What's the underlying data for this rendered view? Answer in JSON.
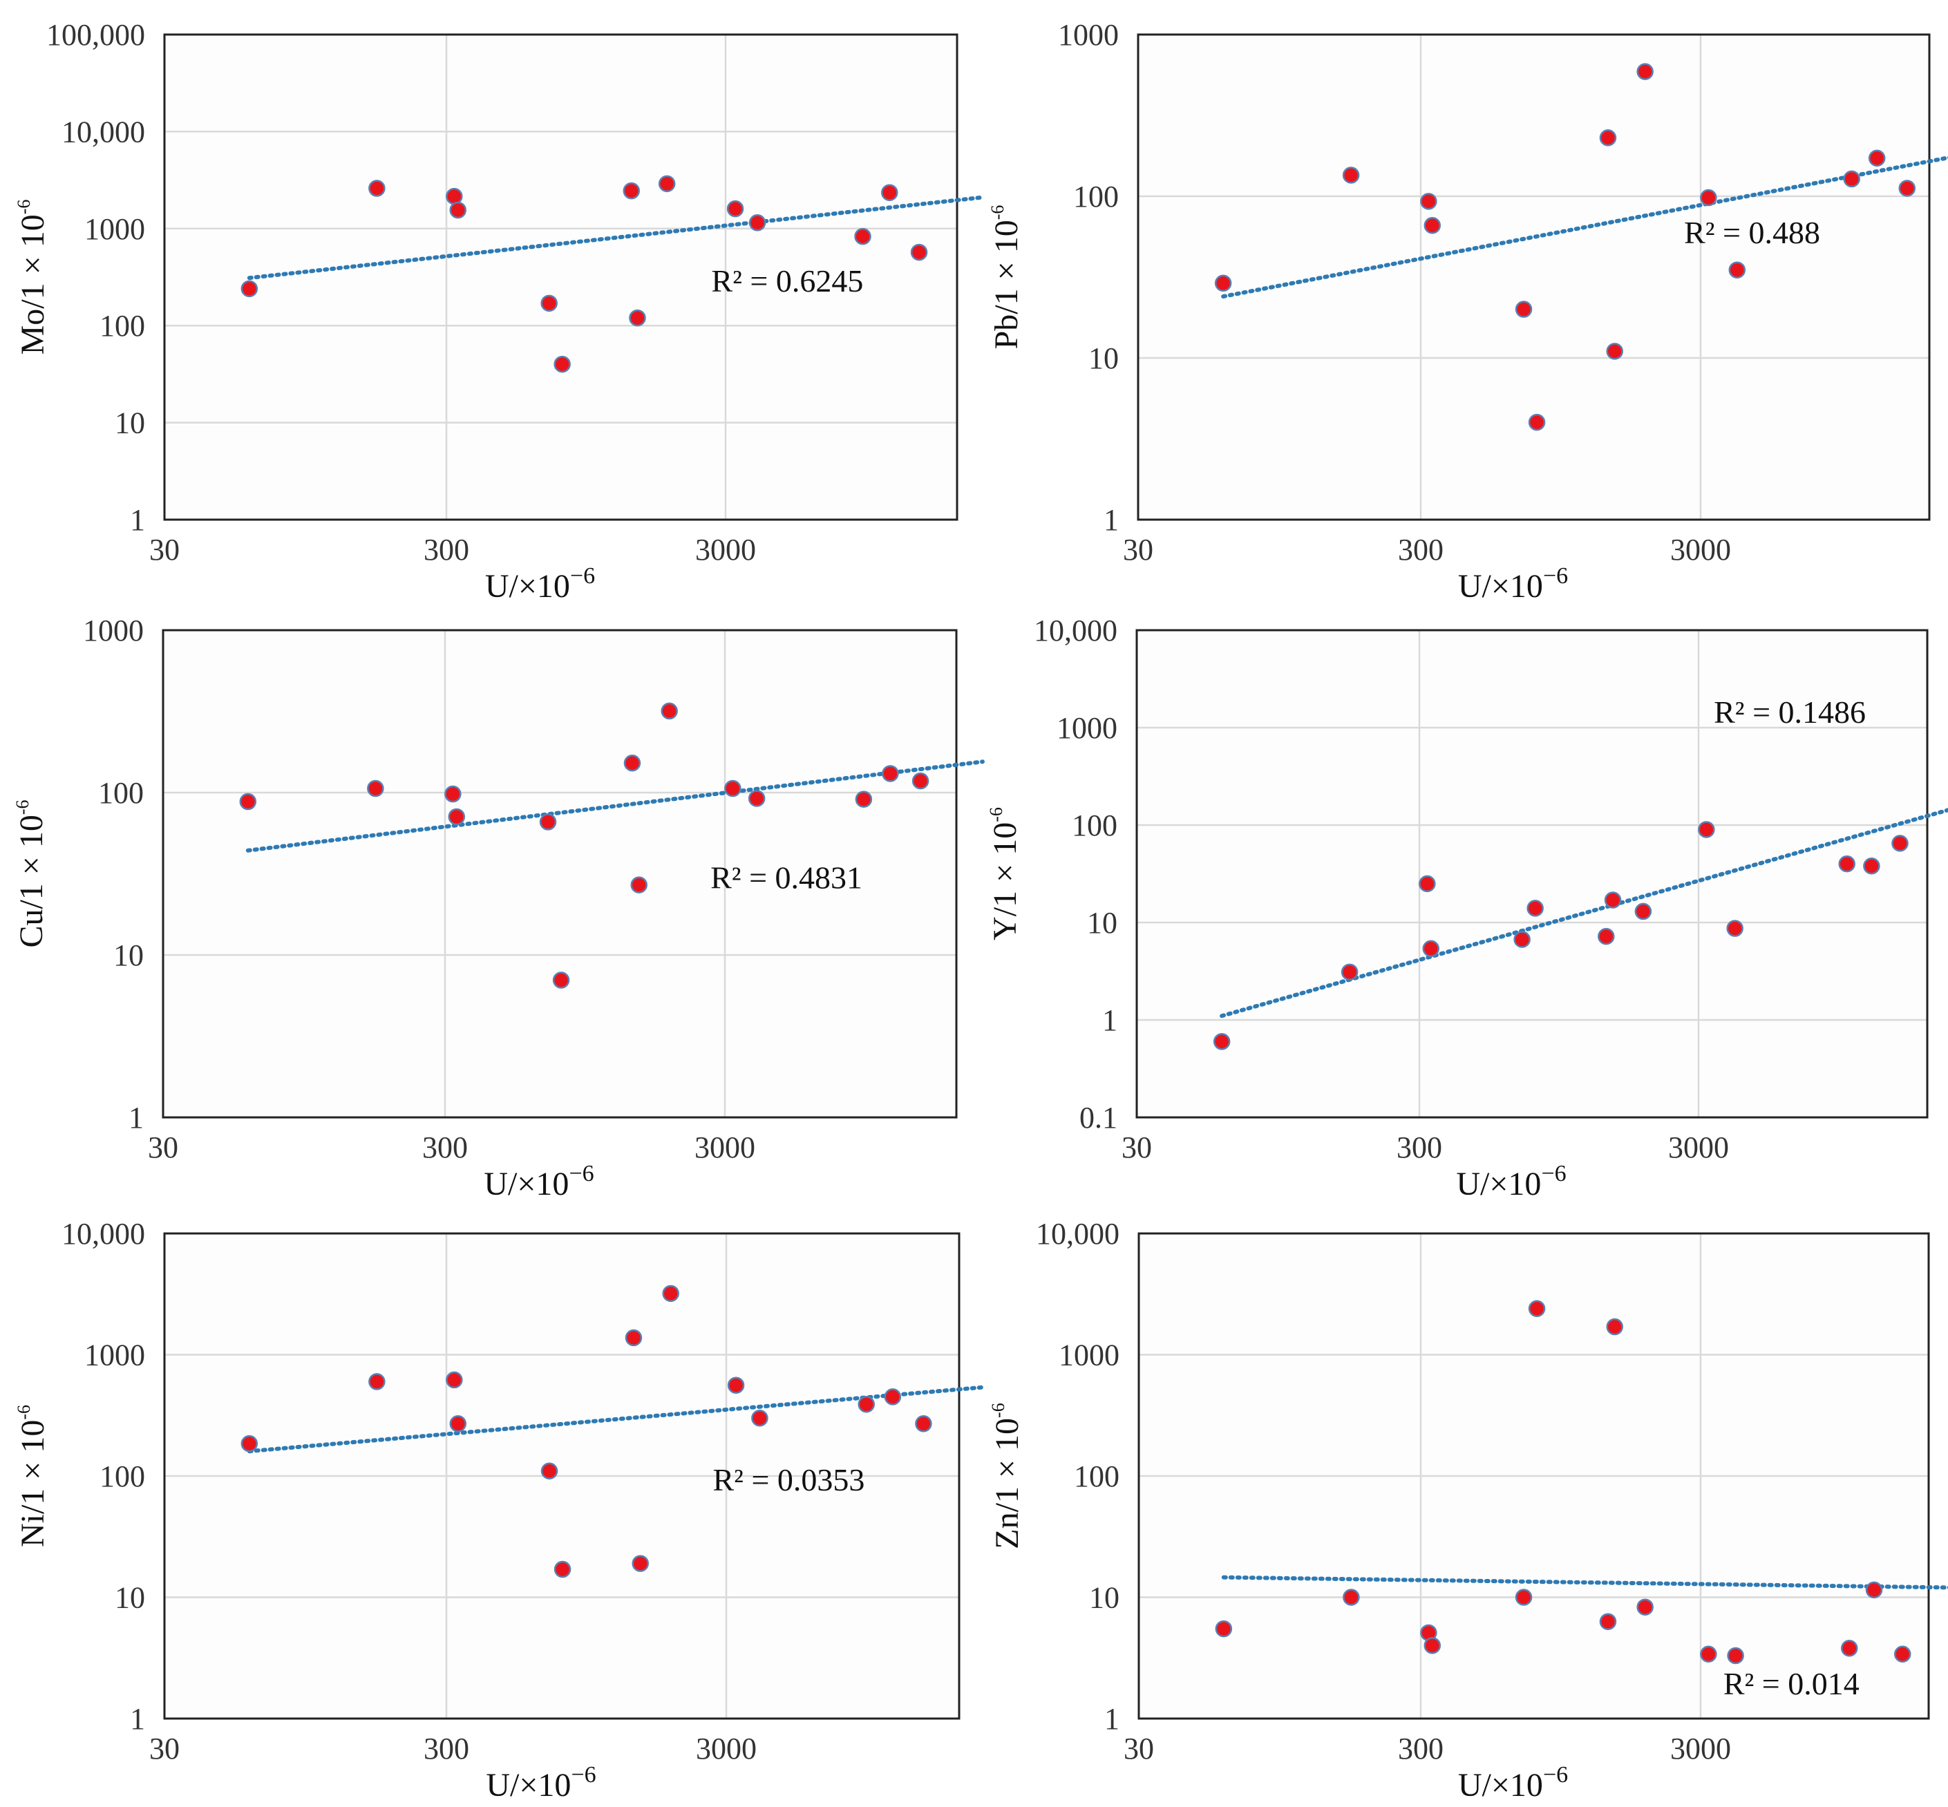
{
  "colors": {
    "point_fill": "#e8141c",
    "point_stroke": "#5b7fb3",
    "trend": "#2e7ab3",
    "grid": "#d9d9d9"
  },
  "chart_data": [
    {
      "type": "scatter",
      "xlabel": "U/×10",
      "xlabel_exp": "−6",
      "ylabel": "Mo/1 × 10",
      "ylabel_exp": "-6",
      "xscale": "log",
      "yscale": "log",
      "xlim": [
        30,
        25000
      ],
      "ylim": [
        1,
        100000
      ],
      "xticks": [
        30,
        300,
        3000
      ],
      "xtick_labels": [
        "30",
        "300",
        "3000"
      ],
      "yticks": [
        1,
        10,
        100,
        1000,
        10000,
        100000
      ],
      "ytick_labels": [
        "1",
        "10",
        "100",
        "1000",
        "10,000",
        "100,000"
      ],
      "points": [
        [
          60,
          240
        ],
        [
          170,
          2600
        ],
        [
          320,
          2150
        ],
        [
          330,
          1550
        ],
        [
          700,
          170
        ],
        [
          780,
          40
        ],
        [
          1380,
          2450
        ],
        [
          1450,
          120
        ],
        [
          1850,
          2900
        ],
        [
          3250,
          1600
        ],
        [
          3900,
          1150
        ],
        [
          9300,
          830
        ],
        [
          11600,
          2350
        ],
        [
          14800,
          570
        ]
      ],
      "trend": {
        "x": [
          60,
          25000
        ],
        "y": [
          310,
          2100
        ]
      },
      "r2_label": "R² = 0.6245",
      "annotation_position": "right-middle"
    },
    {
      "type": "scatter",
      "xlabel": "U/×10",
      "xlabel_exp": "−6",
      "ylabel": "Pb/1 × 10",
      "ylabel_exp": "-6",
      "xscale": "log",
      "yscale": "log",
      "xlim": [
        30,
        25000
      ],
      "ylim": [
        1,
        1000
      ],
      "xticks": [
        30,
        300,
        3000
      ],
      "xtick_labels": [
        "30",
        "300",
        "3000"
      ],
      "yticks": [
        1,
        10,
        100,
        1000
      ],
      "ytick_labels": [
        "1",
        "10",
        "100",
        "1000"
      ],
      "points": [
        [
          60,
          29
        ],
        [
          170,
          135
        ],
        [
          320,
          93
        ],
        [
          330,
          66
        ],
        [
          700,
          20
        ],
        [
          780,
          4
        ],
        [
          1400,
          230
        ],
        [
          1480,
          11
        ],
        [
          1900,
          590
        ],
        [
          3200,
          98
        ],
        [
          4050,
          35
        ],
        [
          10400,
          128
        ],
        [
          12800,
          172
        ],
        [
          16400,
          112
        ]
      ],
      "trend": {
        "x": [
          60,
          25000
        ],
        "y": [
          24,
          178
        ]
      },
      "r2_label": "R² = 0.488",
      "annotation_position": "right-middle"
    },
    {
      "type": "scatter",
      "xlabel": "U/×10",
      "xlabel_exp": "−6",
      "ylabel": "Cu/1 × 10",
      "ylabel_exp": "-6",
      "xscale": "log",
      "yscale": "log",
      "xlim": [
        30,
        25000
      ],
      "ylim": [
        1,
        1000
      ],
      "xticks": [
        30,
        300,
        3000
      ],
      "xtick_labels": [
        "30",
        "300",
        "3000"
      ],
      "yticks": [
        1,
        10,
        100,
        1000
      ],
      "ytick_labels": [
        "1",
        "10",
        "100",
        "1000"
      ],
      "points": [
        [
          60,
          88
        ],
        [
          170,
          106
        ],
        [
          320,
          98
        ],
        [
          330,
          71
        ],
        [
          700,
          66
        ],
        [
          780,
          7
        ],
        [
          1400,
          152
        ],
        [
          1480,
          27
        ],
        [
          1900,
          318
        ],
        [
          3200,
          106
        ],
        [
          3900,
          92
        ],
        [
          9400,
          91
        ],
        [
          11700,
          131
        ],
        [
          15000,
          118
        ]
      ],
      "trend": {
        "x": [
          60,
          25000
        ],
        "y": [
          44,
          155
        ]
      },
      "r2_label": "R² = 0.4831",
      "annotation_position": "right-middle"
    },
    {
      "type": "scatter",
      "xlabel": "U/×10",
      "xlabel_exp": "−6",
      "ylabel": "Y/1 × 10",
      "ylabel_exp": "-6",
      "xscale": "log",
      "yscale": "log",
      "xlim": [
        30,
        25000
      ],
      "ylim": [
        0.1,
        10000
      ],
      "xticks": [
        30,
        300,
        3000
      ],
      "xtick_labels": [
        "30",
        "300",
        "3000"
      ],
      "yticks": [
        0.1,
        1,
        10,
        100,
        1000,
        10000
      ],
      "ytick_labels": [
        "0.1",
        "1",
        "10",
        "100",
        "1000",
        "10,000"
      ],
      "points": [
        [
          60,
          0.6
        ],
        [
          170,
          3.1
        ],
        [
          320,
          25
        ],
        [
          330,
          5.4
        ],
        [
          700,
          6.7
        ],
        [
          780,
          14
        ],
        [
          1400,
          7.2
        ],
        [
          1480,
          17
        ],
        [
          1900,
          13
        ],
        [
          3200,
          90
        ],
        [
          4050,
          8.7
        ],
        [
          10200,
          40
        ],
        [
          12500,
          38
        ],
        [
          15800,
          65
        ]
      ],
      "trend": {
        "x": [
          60,
          25000
        ],
        "y": [
          1.1,
          150
        ]
      },
      "r2_label": "R² = 0.1486",
      "annotation_position": "top-right"
    },
    {
      "type": "scatter",
      "xlabel": "U/×10",
      "xlabel_exp": "−6",
      "ylabel": "Ni/1 × 10",
      "ylabel_exp": "-6",
      "xscale": "log",
      "yscale": "log",
      "xlim": [
        30,
        25000
      ],
      "ylim": [
        1,
        10000
      ],
      "xticks": [
        30,
        300,
        3000
      ],
      "xtick_labels": [
        "30",
        "300",
        "3000"
      ],
      "yticks": [
        1,
        10,
        100,
        1000,
        10000
      ],
      "ytick_labels": [
        "1",
        "10",
        "100",
        "1000",
        "10,000"
      ],
      "points": [
        [
          60,
          185
        ],
        [
          170,
          600
        ],
        [
          320,
          620
        ],
        [
          330,
          270
        ],
        [
          700,
          110
        ],
        [
          780,
          17
        ],
        [
          1400,
          1380
        ],
        [
          1480,
          19
        ],
        [
          1900,
          3200
        ],
        [
          3250,
          560
        ],
        [
          3950,
          300
        ],
        [
          9500,
          390
        ],
        [
          11800,
          450
        ],
        [
          15200,
          270
        ]
      ],
      "trend": {
        "x": [
          60,
          25000
        ],
        "y": [
          160,
          540
        ]
      },
      "r2_label": "R² = 0.0353",
      "annotation_position": "right-middle"
    },
    {
      "type": "scatter",
      "xlabel": "U/×10",
      "xlabel_exp": "−6",
      "ylabel": "Zn/1 × 10",
      "ylabel_exp": "-6",
      "xscale": "log",
      "yscale": "log",
      "xlim": [
        30,
        25000
      ],
      "ylim": [
        1,
        10000
      ],
      "xticks": [
        30,
        300,
        3000
      ],
      "xtick_labels": [
        "30",
        "300",
        "3000"
      ],
      "yticks": [
        1,
        10,
        100,
        1000,
        10000
      ],
      "ytick_labels": [
        "1",
        "10",
        "100",
        "1000",
        "10,000"
      ],
      "points": [
        [
          60,
          5.5
        ],
        [
          170,
          10
        ],
        [
          320,
          5.1
        ],
        [
          330,
          4
        ],
        [
          700,
          10
        ],
        [
          780,
          2400
        ],
        [
          1400,
          6.3
        ],
        [
          1480,
          1700
        ],
        [
          1900,
          8.3
        ],
        [
          3200,
          3.4
        ],
        [
          4000,
          3.3
        ],
        [
          10200,
          3.8
        ],
        [
          12500,
          11.5
        ],
        [
          15800,
          3.4
        ]
      ],
      "trend": {
        "x": [
          60,
          25000
        ],
        "y": [
          14.6,
          12
        ]
      },
      "r2_label": "R² = 0.014",
      "annotation_position": "bottom-right"
    }
  ]
}
